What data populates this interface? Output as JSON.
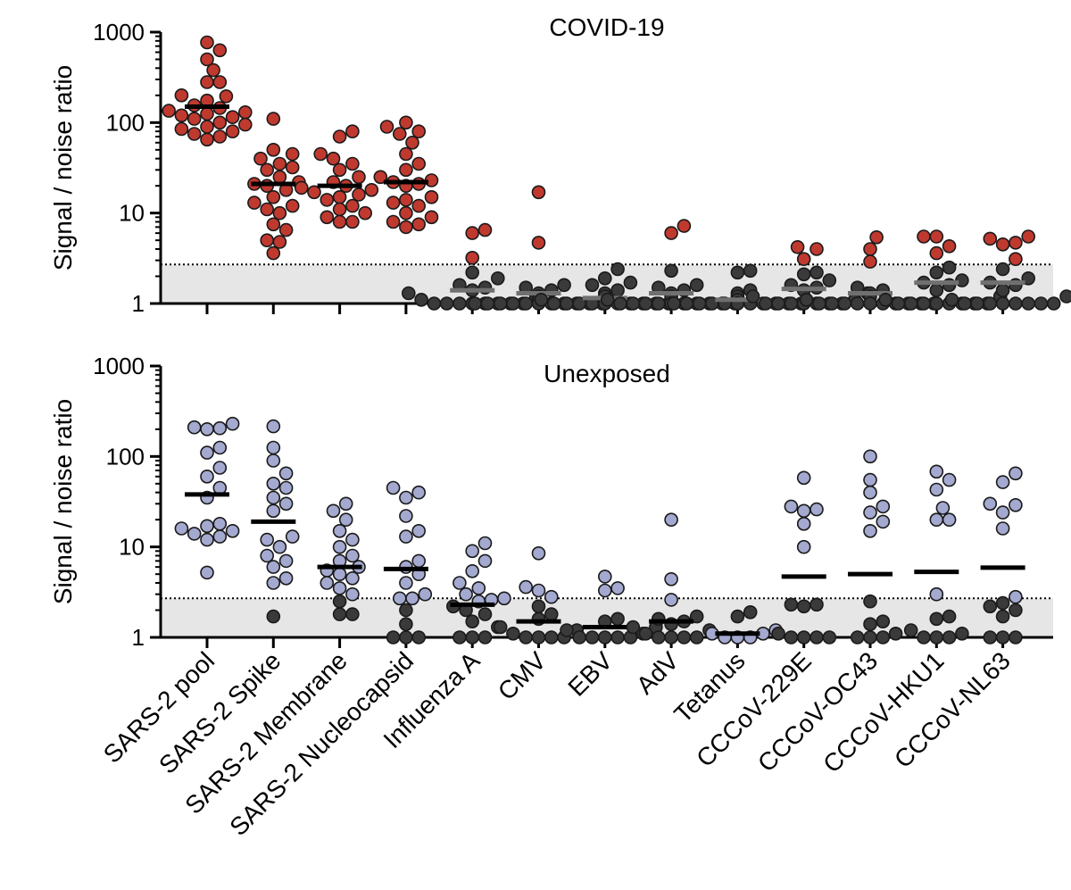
{
  "chart_data": [
    {
      "type": "scatter",
      "title": "COVID-19",
      "ylabel": "Signal / noise ratio",
      "yscale": "log",
      "ylim": [
        1,
        1000
      ],
      "yticks": [
        1,
        10,
        100,
        1000
      ],
      "ytick_labels": [
        "1",
        "10",
        "100",
        "1000"
      ],
      "threshold": 2.7,
      "categories": [
        "SARS-2 pool",
        "SARS-2 Spike",
        "SARS-2 Membrane",
        "SARS-2 Nucleocapsid",
        "Influenza A",
        "CMV",
        "EBV",
        "AdV",
        "Tetanus",
        "CCCoV-229E",
        "CCCoV-OC43",
        "CCCoV-HKU1",
        "CCCoV-NL63"
      ],
      "colors": {
        "positive": "#c0392f",
        "negative": "#3a3a3a",
        "median_positive": "#000000",
        "median_negative": "#707070",
        "background_band": "#e6e6e6"
      },
      "series": [
        {
          "category": "SARS-2 pool",
          "median": 150,
          "positive": [
            770,
            630,
            500,
            380,
            280,
            280,
            200,
            195,
            175,
            155,
            145,
            135,
            130,
            125,
            120,
            115,
            110,
            100,
            95,
            90,
            85,
            80,
            75,
            70,
            65
          ],
          "negative": []
        },
        {
          "category": "SARS-2 Spike",
          "median": 21,
          "positive": [
            110,
            50,
            45,
            40,
            35,
            32,
            30,
            25,
            22,
            21,
            20,
            18,
            15,
            13,
            12,
            11,
            10,
            7.5,
            6.5,
            5,
            4.8,
            3.6
          ],
          "negative": []
        },
        {
          "category": "SARS-2 Membrane",
          "median": 20,
          "positive": [
            80,
            70,
            45,
            40,
            35,
            30,
            25,
            22,
            20,
            19,
            18,
            17,
            16,
            15,
            14,
            12,
            11,
            10,
            9,
            8,
            8
          ],
          "negative": []
        },
        {
          "category": "SARS-2 Nucleocapsid",
          "median": 22,
          "positive": [
            100,
            90,
            80,
            75,
            60,
            45,
            35,
            30,
            25,
            23,
            22,
            21,
            20,
            15,
            14,
            13,
            12,
            10,
            9,
            8,
            7.5,
            7
          ],
          "negative": []
        },
        {
          "category": "Influenza A",
          "median": 1.4,
          "positive": [
            6.5,
            6,
            3.2
          ],
          "negative": [
            2.2,
            1.9,
            1.6,
            1.5,
            1.4,
            1.3,
            1.2,
            1.1,
            1,
            1,
            1,
            1,
            1,
            1,
            1,
            1
          ]
        },
        {
          "category": "CMV",
          "median": 1.3,
          "positive": [
            17,
            4.7
          ],
          "negative": [
            1.6,
            1.5,
            1.4,
            1.3,
            1.2,
            1.1,
            1,
            1,
            1,
            1,
            1,
            1,
            1,
            1,
            1,
            1,
            1
          ]
        },
        {
          "category": "EBV",
          "median": 1.15,
          "positive": [],
          "negative": [
            2.4,
            1.9,
            1.7,
            1.6,
            1.4,
            1.3,
            1.2,
            1.1,
            1,
            1,
            1,
            1,
            1,
            1,
            1,
            1,
            1,
            1
          ]
        },
        {
          "category": "AdV",
          "median": 1.3,
          "positive": [
            7.2,
            6
          ],
          "negative": [
            2.3,
            1.6,
            1.5,
            1.4,
            1.3,
            1.2,
            1.1,
            1,
            1,
            1,
            1,
            1,
            1,
            1,
            1,
            1,
            1
          ]
        },
        {
          "category": "Tetanus",
          "median": 1.1,
          "positive": [],
          "negative": [
            2.3,
            2.2,
            1.4,
            1.3,
            1.2,
            1.1,
            1,
            1,
            1,
            1,
            1,
            1,
            1,
            1,
            1,
            1,
            1,
            1
          ]
        },
        {
          "category": "CCCoV-229E",
          "median": 1.45,
          "positive": [
            4.2,
            4,
            3.1
          ],
          "negative": [
            2.2,
            2.1,
            1.8,
            1.6,
            1.5,
            1.4,
            1.3,
            1.2,
            1.1,
            1,
            1,
            1,
            1,
            1,
            1,
            1
          ]
        },
        {
          "category": "CCCoV-OC43",
          "median": 1.3,
          "positive": [
            5.4,
            4,
            2.9
          ],
          "negative": [
            1.5,
            1.4,
            1.3,
            1.2,
            1.1,
            1,
            1,
            1,
            1,
            1,
            1,
            1,
            1,
            1,
            1
          ]
        },
        {
          "category": "CCCoV-HKU1",
          "median": 1.7,
          "positive": [
            5.5,
            5.5,
            4.3,
            3.6
          ],
          "negative": [
            2.5,
            2.2,
            1.8,
            1.7,
            1.6,
            1.4,
            1.2,
            1.1,
            1,
            1,
            1,
            1,
            1,
            1,
            1,
            1
          ]
        },
        {
          "category": "CCCoV-NL63",
          "median": 1.7,
          "positive": [
            5.5,
            5.2,
            4.7,
            4.5,
            3.1
          ],
          "negative": [
            2.4,
            1.9,
            1.7,
            1.6,
            1.4,
            1.2,
            1.1,
            1,
            1,
            1,
            1,
            1,
            1,
            1,
            1
          ]
        }
      ]
    },
    {
      "type": "scatter",
      "title": "Unexposed",
      "ylabel": "Signal / noise ratio",
      "yscale": "log",
      "ylim": [
        1,
        1000
      ],
      "yticks": [
        1,
        10,
        100,
        1000
      ],
      "ytick_labels": [
        "1",
        "10",
        "100",
        "1000"
      ],
      "threshold": 2.7,
      "categories": [
        "SARS-2 pool",
        "SARS-2 Spike",
        "SARS-2 Membrane",
        "SARS-2 Nucleocapsid",
        "Influenza A",
        "CMV",
        "EBV",
        "AdV",
        "Tetanus",
        "CCCoV-229E",
        "CCCoV-OC43",
        "CCCoV-HKU1",
        "CCCoV-NL63"
      ],
      "colors": {
        "positive": "#a4a9d0",
        "negative": "#3a3a3a",
        "median_positive": "#000000",
        "median_negative": "#000000",
        "background_band": "#e6e6e6"
      },
      "series": [
        {
          "category": "SARS-2 pool",
          "median": 38,
          "positive": [
            230,
            210,
            205,
            200,
            125,
            110,
            75,
            60,
            45,
            35,
            18,
            17,
            16,
            15,
            14,
            13,
            12,
            5.2
          ],
          "negative": []
        },
        {
          "category": "SARS-2 Spike",
          "median": 19,
          "positive": [
            215,
            125,
            90,
            65,
            50,
            45,
            35,
            30,
            25,
            13,
            12,
            10,
            8,
            7,
            6,
            4.5,
            4
          ],
          "negative": [
            1.7
          ]
        },
        {
          "category": "SARS-2 Membrane",
          "median": 6,
          "positive": [
            30,
            25,
            20,
            15,
            12,
            10,
            8,
            7,
            6,
            5.5,
            5,
            4.5,
            4,
            3.5,
            3
          ],
          "negative": [
            2.5,
            1.8,
            1.8
          ]
        },
        {
          "category": "SARS-2 Nucleocapsid",
          "median": 5.7,
          "positive": [
            45,
            40,
            35,
            22,
            15,
            13,
            7,
            6,
            5,
            4,
            3,
            2.7,
            2.7
          ],
          "negative": [
            2,
            1.4,
            1,
            1,
            1
          ]
        },
        {
          "category": "Influenza A",
          "median": 2.3,
          "positive": [
            11,
            9,
            7,
            5.4,
            4,
            3.5,
            3,
            2.7,
            2.6,
            2.5
          ],
          "negative": [
            2.2,
            2,
            1.8,
            1.5,
            1.3,
            1,
            1,
            1
          ]
        },
        {
          "category": "CMV",
          "median": 1.5,
          "positive": [
            8.5,
            3.6,
            3.3,
            2.8
          ],
          "negative": [
            2.2,
            1.8,
            1.6,
            1.3,
            1.2,
            1.1,
            1,
            1,
            1,
            1
          ]
        },
        {
          "category": "EBV",
          "median": 1.3,
          "positive": [
            4.7,
            3.5,
            3.3
          ],
          "negative": [
            1.6,
            1.5,
            1.3,
            1.2,
            1.1,
            1,
            1,
            1,
            1,
            1
          ]
        },
        {
          "category": "AdV",
          "median": 1.5,
          "positive": [
            20,
            4.4,
            2.6
          ],
          "negative": [
            1.7,
            1.6,
            1.5,
            1.4,
            1.3,
            1.2,
            1.1,
            1,
            1,
            1,
            1
          ]
        },
        {
          "category": "Tetanus",
          "median": 1.1,
          "positive": [
            1.2,
            1.1,
            1.1,
            1,
            1,
            1
          ],
          "negative": [
            1.9,
            1.7
          ]
        },
        {
          "category": "CCCoV-229E",
          "median": 4.7,
          "positive": [
            58,
            28,
            26,
            25,
            18,
            10
          ],
          "negative": [
            2.3,
            2.3,
            2.2,
            1.1,
            1,
            1,
            1,
            1
          ]
        },
        {
          "category": "CCCoV-OC43",
          "median": 5,
          "positive": [
            100,
            55,
            40,
            28,
            24,
            19,
            15
          ],
          "negative": [
            2.5,
            1.5,
            1.4,
            1.1,
            1,
            1,
            1
          ]
        },
        {
          "category": "CCCoV-HKU1",
          "median": 5.3,
          "positive": [
            68,
            55,
            43,
            27,
            20,
            20,
            3
          ],
          "negative": [
            1.7,
            1.6,
            1.2,
            1.1,
            1,
            1,
            1
          ]
        },
        {
          "category": "CCCoV-NL63",
          "median": 5.9,
          "positive": [
            65,
            52,
            30,
            29,
            24,
            16,
            2.8
          ],
          "negative": [
            2.4,
            2.2,
            2,
            1.7,
            1,
            1,
            1
          ]
        }
      ]
    }
  ]
}
